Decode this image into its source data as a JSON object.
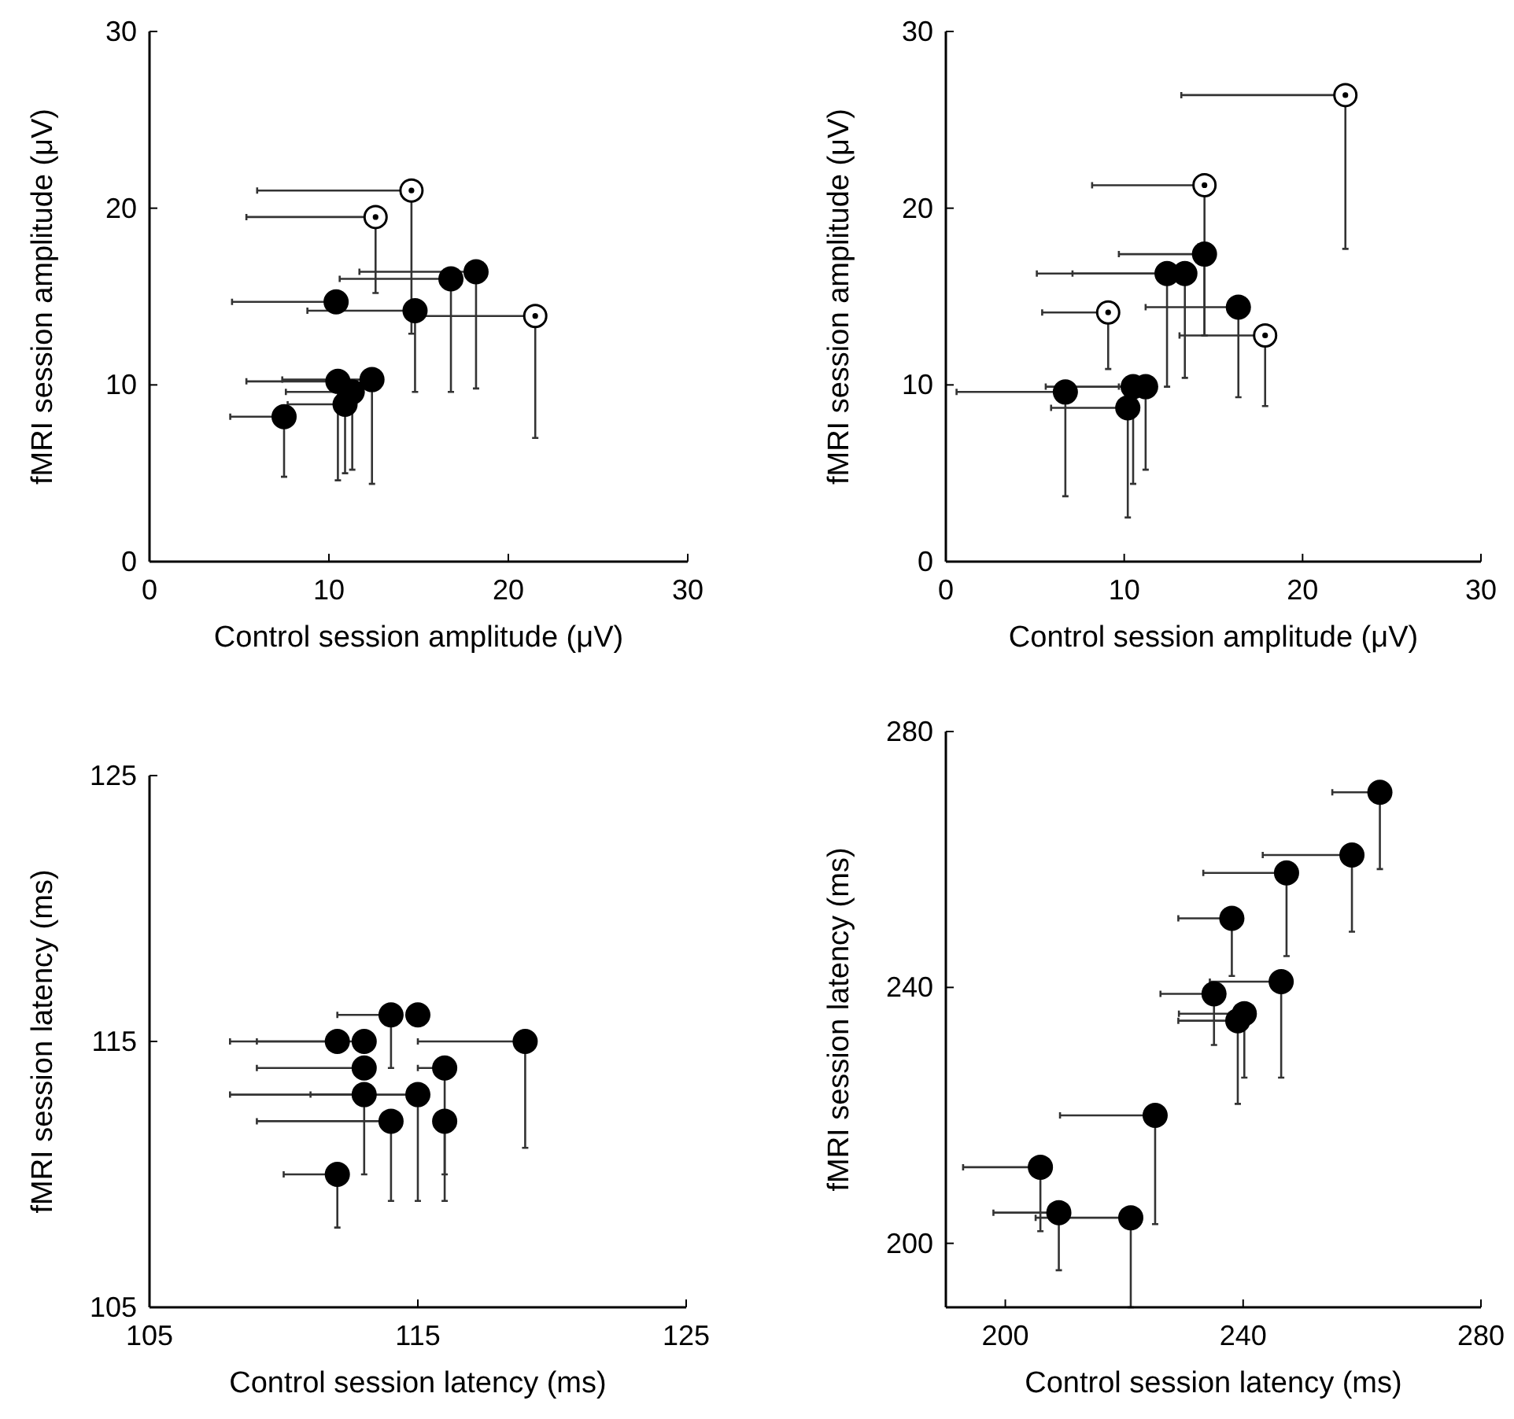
{
  "chart_data": [
    {
      "type": "scatter",
      "xlabel": "Control session amplitude (μV)",
      "ylabel": "fMRI session amplitude (μV)",
      "xlim": [
        0,
        30
      ],
      "ylim": [
        0,
        30
      ],
      "xticks": [
        0,
        10,
        20,
        30
      ],
      "yticks": [
        0,
        10,
        20,
        30
      ],
      "marker": "circle",
      "series": [
        {
          "color": "#ffffff",
          "x": [
            14.6,
            12.6,
            21.5
          ],
          "values": [
            21.0,
            19.5,
            13.9
          ],
          "xerrors": [
            [
              6.0,
              14.6
            ],
            [
              5.4,
              12.6
            ],
            [
              14.6,
              21.5
            ]
          ],
          "errors": [
            [
              12.9,
              21.0
            ],
            [
              15.2,
              19.5
            ],
            [
              7.0,
              13.9
            ]
          ]
        },
        {
          "color": "#000000",
          "x": [
            10.4,
            14.8,
            16.8,
            18.2,
            10.5,
            12.4,
            11.3,
            10.9,
            7.5
          ],
          "values": [
            14.7,
            14.2,
            16.0,
            16.4,
            10.2,
            10.3,
            9.6,
            8.9,
            8.2
          ],
          "xerrors": [
            [
              4.6,
              10.4
            ],
            [
              8.8,
              14.8
            ],
            [
              10.6,
              16.8
            ],
            [
              11.7,
              18.2
            ],
            [
              5.4,
              10.5
            ],
            [
              7.4,
              12.4
            ],
            [
              7.6,
              11.3
            ],
            [
              7.7,
              10.9
            ],
            [
              4.5,
              7.5
            ]
          ],
          "errors": [
            null,
            [
              9.6,
              14.2
            ],
            [
              9.6,
              16.0
            ],
            [
              9.8,
              16.4
            ],
            [
              4.6,
              10.2
            ],
            [
              4.4,
              10.3
            ],
            [
              5.2,
              9.6
            ],
            [
              5.0,
              8.9
            ],
            [
              4.8,
              8.2
            ]
          ]
        }
      ]
    },
    {
      "type": "scatter",
      "xlabel": "Control session amplitude (μV)",
      "ylabel": "fMRI session amplitude (μV)",
      "xlim": [
        0,
        30
      ],
      "ylim": [
        0,
        30
      ],
      "xticks": [
        0,
        10,
        20,
        30
      ],
      "yticks": [
        0,
        10,
        20,
        30
      ],
      "marker": "circle",
      "series": [
        {
          "color": "#ffffff",
          "x": [
            22.4,
            14.5,
            9.1,
            17.9
          ],
          "values": [
            26.4,
            21.3,
            14.1,
            12.8
          ],
          "xerrors": [
            [
              13.2,
              22.4
            ],
            [
              8.2,
              14.5
            ],
            [
              5.4,
              9.1
            ],
            [
              13.1,
              17.9
            ]
          ],
          "errors": [
            [
              17.7,
              26.4
            ],
            [
              12.8,
              21.3
            ],
            [
              10.9,
              14.1
            ],
            [
              8.8,
              12.8
            ]
          ]
        },
        {
          "color": "#000000",
          "x": [
            14.5,
            12.4,
            13.4,
            16.4,
            6.7,
            10.5,
            11.2,
            10.2
          ],
          "values": [
            17.4,
            16.3,
            16.3,
            14.4,
            9.6,
            9.9,
            9.9,
            8.7
          ],
          "xerrors": [
            [
              9.7,
              14.5
            ],
            [
              5.1,
              12.4
            ],
            [
              7.1,
              13.4
            ],
            [
              11.2,
              16.4
            ],
            [
              0.6,
              6.7
            ],
            [
              5.6,
              10.5
            ],
            [
              9.7,
              11.2
            ],
            [
              5.9,
              10.2
            ]
          ],
          "errors": [
            [
              12.8,
              17.4
            ],
            [
              9.9,
              16.3
            ],
            [
              10.4,
              16.3
            ],
            [
              9.3,
              14.4
            ],
            [
              3.7,
              9.6
            ],
            [
              4.4,
              9.9
            ],
            [
              5.2,
              9.9
            ],
            [
              2.5,
              8.7
            ]
          ]
        }
      ]
    },
    {
      "type": "scatter",
      "xlabel": "Control session latency (ms)",
      "ylabel": "fMRI session latency (ms)",
      "xlim": [
        105,
        125
      ],
      "ylim": [
        105,
        125
      ],
      "xticks": [
        105,
        115,
        125
      ],
      "yticks": [
        105,
        115,
        125
      ],
      "marker": "circle",
      "series": [
        {
          "color": "#000000",
          "x": [
            112,
            113,
            114,
            115,
            119,
            113,
            116,
            113,
            115,
            114,
            116,
            112
          ],
          "values": [
            115,
            115,
            116,
            116,
            115,
            114,
            114,
            113,
            113,
            112,
            112,
            110
          ],
          "xerrors": [
            [
              108,
              112
            ],
            [
              109,
              113
            ],
            [
              112,
              114
            ],
            null,
            [
              115,
              119
            ],
            [
              109,
              113
            ],
            [
              115,
              116
            ],
            [
              108,
              113
            ],
            [
              111,
              115
            ],
            [
              109,
              114
            ],
            null,
            [
              110,
              112
            ]
          ],
          "errors": [
            null,
            null,
            [
              114,
              116
            ],
            null,
            [
              111,
              115
            ],
            null,
            [
              110,
              114
            ],
            [
              110,
              113
            ],
            [
              109,
              113
            ],
            [
              109,
              112
            ],
            [
              109,
              112
            ],
            [
              108,
              110
            ]
          ]
        }
      ]
    },
    {
      "type": "scatter",
      "xlabel": "Control session latency (ms)",
      "ylabel": "fMRI session latency (ms)",
      "xlim": [
        190,
        280
      ],
      "ylim": [
        190,
        280
      ],
      "xticks": [
        200,
        240,
        280
      ],
      "yticks": [
        200,
        240,
        280
      ],
      "marker": "circle",
      "series": [
        {
          "color": "#000000",
          "x": [
            263.0,
            258.3,
            247.3,
            238.1,
            246.4,
            235.1,
            240.2,
            239.1,
            225.2,
            205.9,
            209.0,
            221.1
          ],
          "values": [
            270.5,
            260.7,
            257.9,
            250.8,
            240.9,
            239.0,
            235.9,
            234.8,
            220.0,
            211.9,
            204.8,
            204.0
          ],
          "xerrors": [
            [
              255.0,
              263.0
            ],
            [
              243.3,
              258.3
            ],
            [
              233.3,
              247.3
            ],
            [
              229.1,
              238.1
            ],
            [
              234.4,
              246.4
            ],
            [
              226.1,
              235.1
            ],
            [
              229.2,
              240.2
            ],
            [
              229.1,
              239.1
            ],
            [
              209.2,
              225.2
            ],
            [
              192.9,
              205.9
            ],
            [
              198.0,
              209.0
            ],
            [
              205.1,
              221.1
            ]
          ],
          "errors": [
            [
              258.5,
              270.5
            ],
            [
              248.7,
              260.7
            ],
            [
              244.9,
              257.9
            ],
            [
              241.8,
              250.8
            ],
            [
              225.9,
              240.9
            ],
            [
              231.0,
              239.0
            ],
            [
              225.9,
              235.9
            ],
            [
              221.8,
              234.8
            ],
            [
              203.0,
              220.0
            ],
            [
              201.9,
              211.9
            ],
            [
              195.8,
              204.8
            ],
            [
              190.0,
              204.0
            ]
          ]
        }
      ]
    }
  ]
}
